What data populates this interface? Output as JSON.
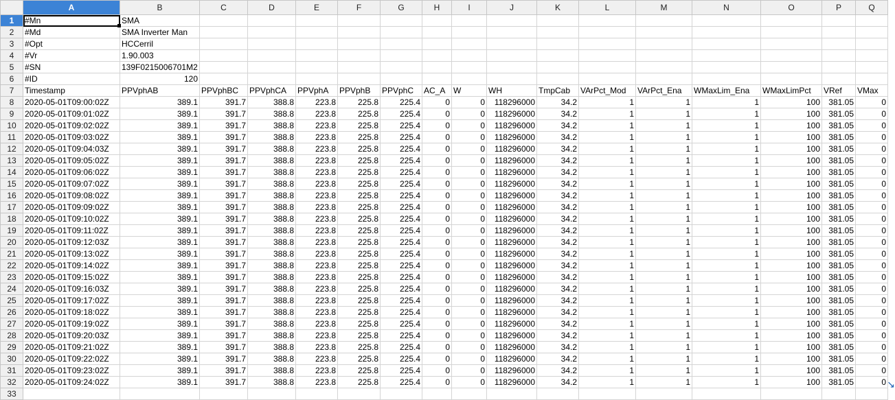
{
  "columns": [
    "A",
    "B",
    "C",
    "D",
    "E",
    "F",
    "G",
    "H",
    "I",
    "J",
    "K",
    "L",
    "M",
    "N",
    "O",
    "P",
    "Q"
  ],
  "active_cell": "A1",
  "meta_rows": [
    {
      "row": "1",
      "a": "#Mn",
      "b": "SMA"
    },
    {
      "row": "2",
      "a": "#Md",
      "b": "SMA Inverter Man"
    },
    {
      "row": "3",
      "a": "#Opt",
      "b": "HCCerril"
    },
    {
      "row": "4",
      "a": "#Vr",
      "b": "1.90.003"
    },
    {
      "row": "5",
      "a": "#SN",
      "b": "139F0215006701M2"
    },
    {
      "row": "6",
      "a": "#ID",
      "b": "120"
    }
  ],
  "header_row": {
    "row": "7",
    "cells": [
      "Timestamp",
      "PPVphAB",
      "PPVphBC",
      "PPVphCA",
      "PPVphA",
      "PPVphB",
      "PPVphC",
      "AC_A",
      "W",
      "WH",
      "TmpCab",
      "VArPct_Mod",
      "VArPct_Ena",
      "WMaxLim_Ena",
      "WMaxLimPct",
      "VRef",
      "VMax"
    ]
  },
  "data_values": [
    "389.1",
    "391.7",
    "388.8",
    "223.8",
    "225.8",
    "225.4",
    "0",
    "0",
    "118296000",
    "34.2",
    "1",
    "1",
    "1",
    "100",
    "381.05",
    "0"
  ],
  "data_rows": [
    {
      "row": "8",
      "ts": "2020-05-01T09:00:02Z"
    },
    {
      "row": "9",
      "ts": "2020-05-01T09:01:02Z"
    },
    {
      "row": "10",
      "ts": "2020-05-01T09:02:02Z"
    },
    {
      "row": "11",
      "ts": "2020-05-01T09:03:02Z"
    },
    {
      "row": "12",
      "ts": "2020-05-01T09:04:03Z"
    },
    {
      "row": "13",
      "ts": "2020-05-01T09:05:02Z"
    },
    {
      "row": "14",
      "ts": "2020-05-01T09:06:02Z"
    },
    {
      "row": "15",
      "ts": "2020-05-01T09:07:02Z"
    },
    {
      "row": "16",
      "ts": "2020-05-01T09:08:02Z"
    },
    {
      "row": "17",
      "ts": "2020-05-01T09:09:02Z"
    },
    {
      "row": "18",
      "ts": "2020-05-01T09:10:02Z"
    },
    {
      "row": "19",
      "ts": "2020-05-01T09:11:02Z"
    },
    {
      "row": "20",
      "ts": "2020-05-01T09:12:03Z"
    },
    {
      "row": "21",
      "ts": "2020-05-01T09:13:02Z"
    },
    {
      "row": "22",
      "ts": "2020-05-01T09:14:02Z"
    },
    {
      "row": "23",
      "ts": "2020-05-01T09:15:02Z"
    },
    {
      "row": "24",
      "ts": "2020-05-01T09:16:03Z"
    },
    {
      "row": "25",
      "ts": "2020-05-01T09:17:02Z"
    },
    {
      "row": "26",
      "ts": "2020-05-01T09:18:02Z"
    },
    {
      "row": "27",
      "ts": "2020-05-01T09:19:02Z"
    },
    {
      "row": "28",
      "ts": "2020-05-01T09:20:03Z"
    },
    {
      "row": "29",
      "ts": "2020-05-01T09:21:02Z"
    },
    {
      "row": "30",
      "ts": "2020-05-01T09:22:02Z"
    },
    {
      "row": "31",
      "ts": "2020-05-01T09:23:02Z"
    },
    {
      "row": "32",
      "ts": "2020-05-01T09:24:02Z"
    }
  ],
  "partial_row": {
    "row": "33"
  },
  "cursor_icon": "mouse-pointer-icon"
}
